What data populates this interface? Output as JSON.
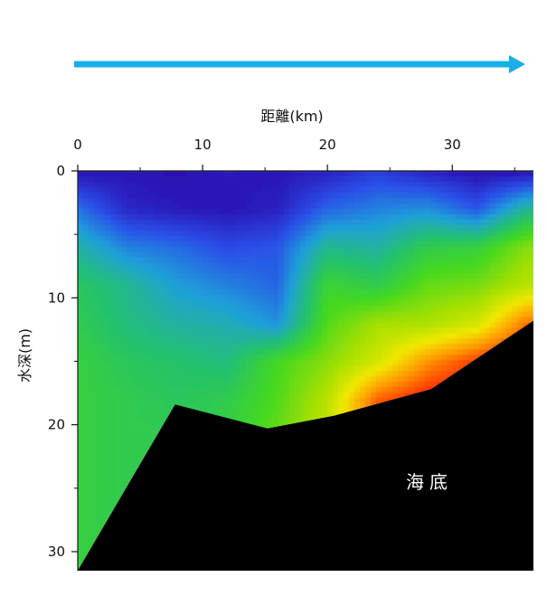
{
  "chart_data": {
    "type": "heatmap",
    "title": "",
    "xlabel": "距離(km)",
    "ylabel": "水深(m)",
    "x_axis_position": "top",
    "y_axis_inverted": true,
    "xlim": [
      0,
      36.5
    ],
    "ylim": [
      0,
      31.5
    ],
    "x_ticks": [
      0,
      10,
      20,
      30
    ],
    "x_ticks_minor": [
      5,
      15,
      25,
      35
    ],
    "y_ticks": [
      0,
      10,
      20,
      30
    ],
    "y_ticks_minor": [
      5,
      15,
      25
    ],
    "grid": false,
    "legend": "none",
    "colormap": [
      "#2a0fb0",
      "#2a4fe8",
      "#1fa0d8",
      "#22c070",
      "#44d820",
      "#a8e000",
      "#f0e800",
      "#ff9900",
      "#ff3300",
      "#ee0000"
    ],
    "seabed_label": "海底",
    "seabed_color": "#000000",
    "seabed_profile": {
      "x": [
        0,
        7.8,
        15.2,
        20.5,
        28.3,
        36.5
      ],
      "depth": [
        31.5,
        18.4,
        20.3,
        19.3,
        17.2,
        11.8
      ]
    },
    "direction_arrow": {
      "color": "#19aee8",
      "from_x": 0,
      "to_x": 36.5
    },
    "field_grid": {
      "x": [
        0,
        4,
        8,
        12,
        16,
        20,
        24,
        28,
        32,
        36
      ],
      "depth": [
        0,
        3,
        6,
        9,
        12,
        15,
        18,
        21,
        24,
        27,
        30
      ],
      "values": [
        [
          0.0,
          0.01,
          0.0,
          0.02,
          0.01,
          0.03,
          0.08,
          0.03,
          0.0,
          0.0
        ],
        [
          0.16,
          0.04,
          0.02,
          0.01,
          0.03,
          0.14,
          0.18,
          0.2,
          0.12,
          0.3
        ],
        [
          0.28,
          0.18,
          0.15,
          0.1,
          0.12,
          0.3,
          0.28,
          0.38,
          0.4,
          0.52
        ],
        [
          0.36,
          0.3,
          0.22,
          0.18,
          0.14,
          0.42,
          0.38,
          0.48,
          0.5,
          0.58
        ],
        [
          0.38,
          0.32,
          0.28,
          0.26,
          0.2,
          0.46,
          0.55,
          0.56,
          0.62,
          0.82
        ],
        [
          0.4,
          0.36,
          0.34,
          0.32,
          0.44,
          0.52,
          0.62,
          0.78,
          0.88,
          0.95
        ],
        [
          0.4,
          0.38,
          0.36,
          0.38,
          0.46,
          0.58,
          0.84,
          0.92,
          0.95,
          0.95
        ],
        [
          0.4,
          0.38,
          0.38,
          0.4,
          0.48,
          0.6,
          0.85,
          0.92,
          0.95,
          0.95
        ],
        [
          0.4,
          0.38,
          0.38,
          0.4,
          0.48,
          0.6,
          0.85,
          0.92,
          0.95,
          0.95
        ],
        [
          0.4,
          0.38,
          0.38,
          0.4,
          0.48,
          0.6,
          0.85,
          0.92,
          0.95,
          0.95
        ],
        [
          0.4,
          0.38,
          0.38,
          0.4,
          0.48,
          0.6,
          0.85,
          0.92,
          0.95,
          0.95
        ]
      ]
    }
  }
}
